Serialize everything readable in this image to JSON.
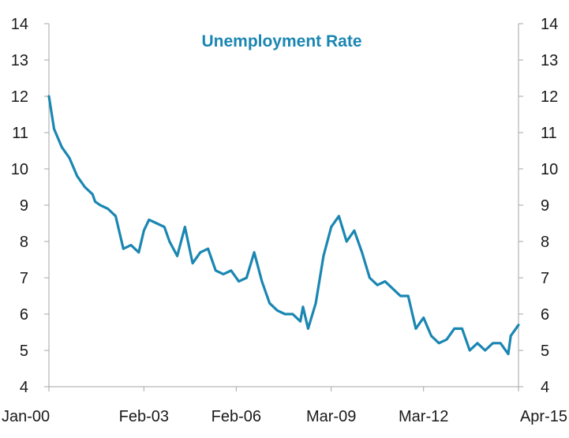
{
  "chart_data": {
    "type": "line",
    "title": "Unemployment Rate",
    "xlabel": "",
    "ylabel": "",
    "ylim": [
      4,
      14
    ],
    "y_ticks": [
      4,
      5,
      6,
      7,
      8,
      9,
      10,
      11,
      12,
      13,
      14
    ],
    "x_tick_labels": [
      "Jan-00",
      "Feb-03",
      "Feb-06",
      "Mar-09",
      "Mar-12",
      "Apr-15"
    ],
    "x_tick_dates": [
      "2000-01",
      "2003-02",
      "2006-02",
      "2009-03",
      "2012-03",
      "2015-04"
    ],
    "x_range": [
      "2000-01",
      "2015-04"
    ],
    "grid": false,
    "right_axis_mirrors_left": true,
    "line_color": "#1a86b2",
    "series": [
      {
        "x": [
          "2000-01",
          "2000-03",
          "2000-06",
          "2000-09",
          "2000-12",
          "2001-03",
          "2001-06",
          "2001-07",
          "2001-09",
          "2001-12",
          "2002-03",
          "2002-06",
          "2002-09",
          "2002-12",
          "2003-02",
          "2003-04",
          "2003-07",
          "2003-10",
          "2003-12",
          "2004-03",
          "2004-06",
          "2004-09",
          "2004-12",
          "2005-03",
          "2005-06",
          "2005-09",
          "2005-12",
          "2006-03",
          "2006-06",
          "2006-09",
          "2006-12",
          "2007-03",
          "2007-06",
          "2007-09",
          "2007-12",
          "2008-03",
          "2008-04",
          "2008-06",
          "2008-09",
          "2008-12",
          "2009-03",
          "2009-06",
          "2009-09",
          "2009-12",
          "2010-03",
          "2010-06",
          "2010-09",
          "2010-12",
          "2011-03",
          "2011-06",
          "2011-09",
          "2011-12",
          "2012-03",
          "2012-06",
          "2012-09",
          "2012-12",
          "2013-03",
          "2013-06",
          "2013-09",
          "2013-12",
          "2014-03",
          "2014-06",
          "2014-09",
          "2014-12",
          "2015-01",
          "2015-04"
        ],
        "y": [
          12.0,
          11.1,
          10.6,
          10.3,
          9.8,
          9.5,
          9.3,
          9.1,
          9.0,
          8.9,
          8.7,
          7.8,
          7.9,
          7.7,
          8.3,
          8.6,
          8.5,
          8.4,
          8.0,
          7.6,
          8.4,
          7.4,
          7.7,
          7.8,
          7.2,
          7.1,
          7.2,
          6.9,
          7.0,
          7.7,
          6.9,
          6.3,
          6.1,
          6.0,
          6.0,
          5.8,
          6.2,
          5.6,
          6.3,
          7.6,
          8.4,
          8.7,
          8.0,
          8.3,
          7.7,
          7.0,
          6.8,
          6.9,
          6.7,
          6.5,
          6.5,
          5.6,
          5.9,
          5.4,
          5.2,
          5.3,
          5.6,
          5.6,
          5.0,
          5.2,
          5.0,
          5.2,
          5.2,
          4.9,
          5.4,
          5.7
        ]
      }
    ]
  }
}
